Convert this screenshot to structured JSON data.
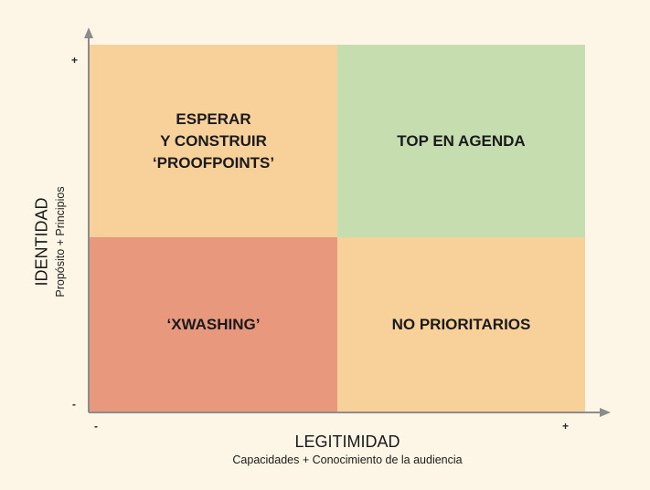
{
  "diagram": {
    "quadrants": {
      "top_left": "ESPERAR\nY CONSTRUIR\n‘PROOFPOINTS’",
      "top_right": "TOP EN AGENDA",
      "bottom_left": "‘XWASHING’",
      "bottom_right": "NO PRIORITARIOS"
    },
    "colors": {
      "orange": "#f7d09a",
      "green": "#c6ddb0",
      "red": "#e8987c",
      "background": "#fdf6e6",
      "axis": "#8c8c8c"
    },
    "x_axis": {
      "title": "LEGITIMIDAD",
      "subtitle": "Capacidades + Conocimiento de la audiencia",
      "min_label": "-",
      "max_label": "+"
    },
    "y_axis": {
      "title": "IDENTIDAD",
      "subtitle": "Propósito + Principios",
      "min_label": "-",
      "max_label": "+"
    }
  }
}
